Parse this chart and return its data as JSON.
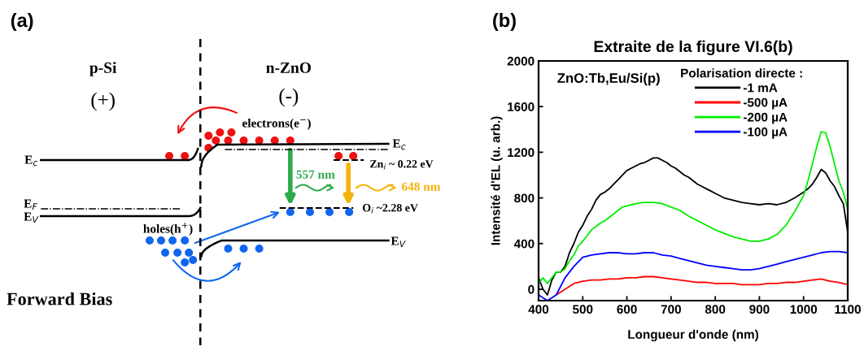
{
  "chart_data": [
    {
      "type": "other",
      "annotations": [
        "(a)",
        "p-Si",
        "(+)",
        "n-ZnO",
        "(-)",
        "electrons(e$^{−}$)",
        "E$_{c}$",
        "E$_{F}$",
        "E$_{V}$",
        "holes(h$^{+}$)",
        "E$_{c}$",
        "Zn$_{i}$ ~ 0.22 eV",
        "557 nm",
        "648 nm",
        "O$_{i}$ ~2.28 eV",
        "E$_{V}$",
        "Forward Bias"
      ]
    },
    {
      "type": "line",
      "title": "Extraite de la figure VI.6(b)",
      "xlabel": "Longueur d'onde (nm)",
      "ylabel": "Intensité d'EL (u. arb.)",
      "annotations": [
        "(b)",
        "ZnO:Tb,Eu/Si(p)"
      ],
      "legend_title": "Polarisation directe :",
      "legend": "top right",
      "xlim": [
        400,
        1100
      ],
      "xticks": [
        400,
        500,
        600,
        700,
        800,
        900,
        1000,
        1100
      ],
      "ylim": [
        -100,
        2000
      ],
      "yticks": [
        0,
        400,
        800,
        1200,
        1600,
        2000
      ],
      "grid": false,
      "series": [
        {
          "name": "-1 mA",
          "color": "#000000",
          "x": [
            400,
            410,
            420,
            430,
            440,
            450,
            460,
            470,
            480,
            490,
            500,
            510,
            520,
            530,
            540,
            550,
            560,
            570,
            580,
            590,
            600,
            610,
            620,
            630,
            640,
            650,
            660,
            670,
            680,
            690,
            700,
            710,
            720,
            730,
            740,
            750,
            760,
            770,
            780,
            790,
            800,
            820,
            840,
            860,
            880,
            900,
            920,
            940,
            960,
            980,
            1000,
            1010,
            1020,
            1030,
            1040,
            1050,
            1060,
            1070,
            1080,
            1090,
            1100
          ],
          "values": [
            100,
            0,
            -50,
            80,
            150,
            150,
            200,
            320,
            400,
            500,
            560,
            640,
            700,
            780,
            830,
            850,
            880,
            920,
            960,
            1000,
            1040,
            1060,
            1080,
            1100,
            1110,
            1130,
            1150,
            1150,
            1130,
            1110,
            1080,
            1060,
            1030,
            1000,
            980,
            950,
            920,
            900,
            880,
            860,
            840,
            800,
            780,
            760,
            750,
            740,
            750,
            740,
            760,
            800,
            850,
            880,
            920,
            980,
            1050,
            1020,
            950,
            900,
            820,
            750,
            500
          ]
        },
        {
          "name": "-500 µA",
          "color": "#ff0000",
          "x": [
            440,
            460,
            480,
            500,
            520,
            540,
            560,
            580,
            600,
            620,
            640,
            660,
            680,
            700,
            720,
            740,
            760,
            780,
            800,
            820,
            840,
            860,
            880,
            900,
            920,
            940,
            960,
            980,
            1000,
            1020,
            1040,
            1060,
            1080,
            1100
          ],
          "values": [
            -50,
            0,
            50,
            70,
            80,
            80,
            90,
            90,
            100,
            100,
            110,
            110,
            100,
            90,
            80,
            70,
            60,
            60,
            50,
            50,
            50,
            40,
            40,
            40,
            50,
            50,
            60,
            60,
            70,
            80,
            90,
            70,
            60,
            40
          ]
        },
        {
          "name": "-200 µA",
          "color": "#00ee00",
          "x": [
            400,
            410,
            420,
            430,
            440,
            450,
            460,
            470,
            480,
            490,
            500,
            510,
            520,
            530,
            540,
            550,
            560,
            570,
            580,
            590,
            600,
            620,
            640,
            660,
            680,
            700,
            720,
            740,
            760,
            780,
            800,
            820,
            840,
            860,
            880,
            900,
            920,
            940,
            960,
            980,
            1000,
            1010,
            1020,
            1030,
            1040,
            1050,
            1060,
            1070,
            1080,
            1090,
            1100
          ],
          "values": [
            50,
            100,
            50,
            100,
            150,
            150,
            180,
            250,
            300,
            380,
            420,
            470,
            520,
            550,
            580,
            600,
            630,
            660,
            690,
            720,
            730,
            750,
            760,
            760,
            750,
            720,
            690,
            640,
            600,
            560,
            520,
            490,
            460,
            440,
            420,
            420,
            440,
            480,
            560,
            680,
            820,
            950,
            1100,
            1250,
            1380,
            1370,
            1250,
            1100,
            950,
            850,
            700
          ]
        },
        {
          "name": "-100 µA",
          "color": "#0000ff",
          "x": [
            400,
            420,
            440,
            460,
            480,
            500,
            520,
            540,
            560,
            580,
            600,
            620,
            640,
            660,
            680,
            700,
            720,
            740,
            760,
            780,
            800,
            820,
            840,
            860,
            880,
            900,
            920,
            940,
            960,
            980,
            1000,
            1020,
            1040,
            1060,
            1080,
            1100
          ],
          "values": [
            -50,
            -100,
            -50,
            100,
            200,
            280,
            300,
            310,
            320,
            320,
            310,
            310,
            320,
            320,
            300,
            290,
            270,
            250,
            230,
            210,
            200,
            190,
            180,
            170,
            170,
            180,
            200,
            220,
            240,
            260,
            280,
            300,
            320,
            330,
            330,
            320
          ]
        }
      ]
    }
  ]
}
